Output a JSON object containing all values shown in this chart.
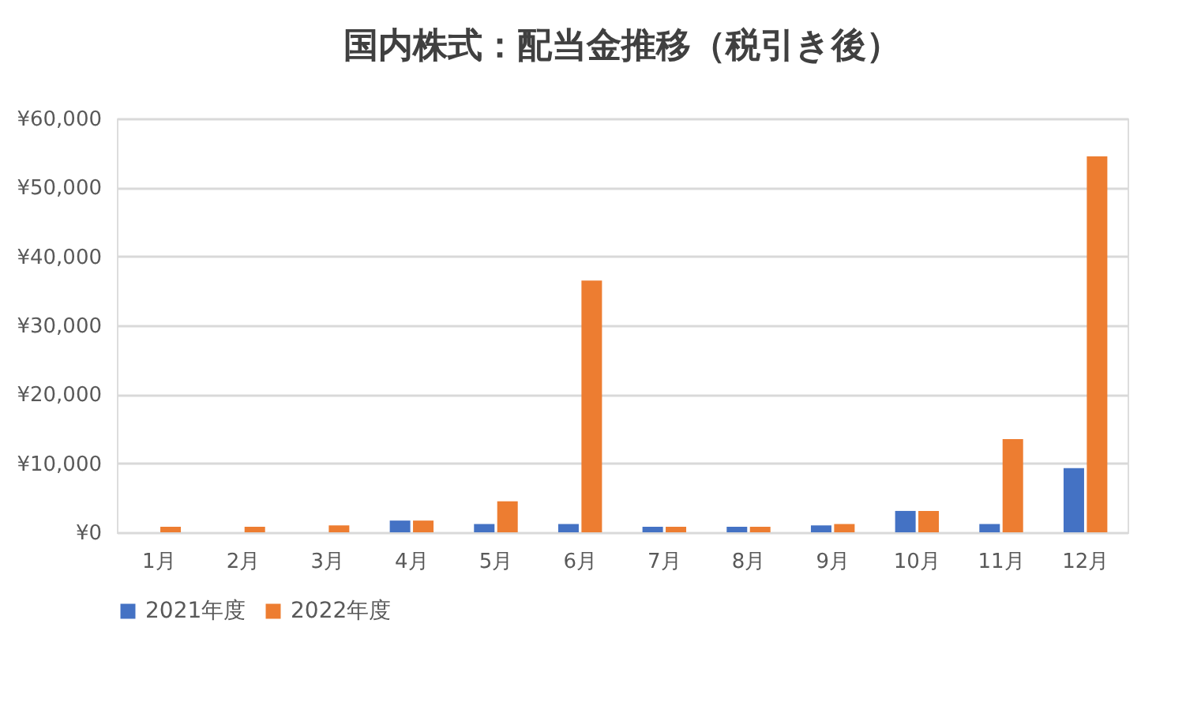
{
  "chart_data": {
    "type": "bar",
    "title": "国内株式：配当金推移（税引き後）",
    "categories": [
      "1月",
      "2月",
      "3月",
      "4月",
      "5月",
      "6月",
      "7月",
      "8月",
      "9月",
      "10月",
      "11月",
      "12月"
    ],
    "series": [
      {
        "name": "2021年度",
        "color": "#4472c4",
        "values": [
          0,
          0,
          0,
          1700,
          1200,
          1200,
          800,
          800,
          1000,
          3100,
          1200,
          9300
        ]
      },
      {
        "name": "2022年度",
        "color": "#ed7d31",
        "values": [
          800,
          800,
          1000,
          1700,
          4500,
          36500,
          800,
          800,
          1200,
          3100,
          13500,
          54500
        ]
      }
    ],
    "ylim": [
      0,
      60000
    ],
    "yticks": [
      {
        "value": 0,
        "label": "¥0"
      },
      {
        "value": 10000,
        "label": "¥10,000"
      },
      {
        "value": 20000,
        "label": "¥20,000"
      },
      {
        "value": 30000,
        "label": "¥30,000"
      },
      {
        "value": 40000,
        "label": "¥40,000"
      },
      {
        "value": 50000,
        "label": "¥50,000"
      },
      {
        "value": 60000,
        "label": "¥60,000"
      }
    ],
    "grid": "y",
    "legend": "bottom"
  }
}
